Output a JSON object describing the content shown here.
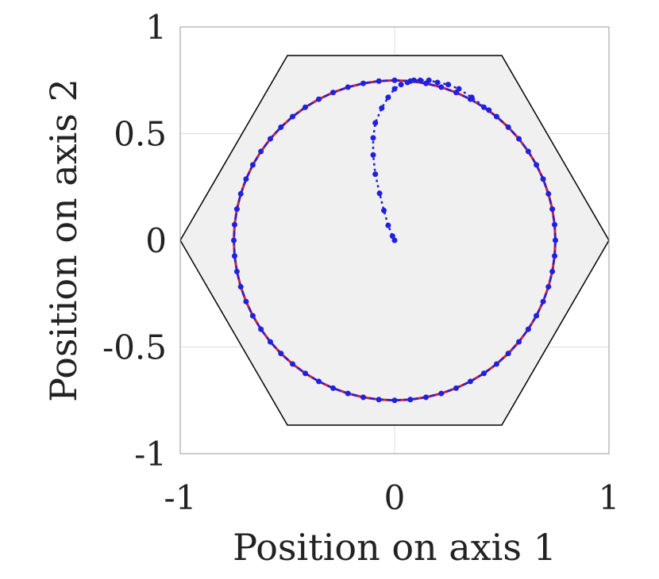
{
  "chart_data": {
    "type": "line",
    "xlabel": "Position on axis 1",
    "ylabel": "Position on axis 2",
    "xlim": [
      -1,
      1
    ],
    "ylim": [
      -1,
      1
    ],
    "xticks": [
      "-1",
      "0",
      "1"
    ],
    "yticks": [
      "1",
      "0.5",
      "0",
      "-0.5",
      "-1"
    ],
    "grid": true,
    "colors": {
      "reference": "#e02020",
      "trajectory": "#2020e0",
      "hexagon_fill": "#f0f0f0",
      "hexagon_edge": "#000000"
    },
    "hexagon": [
      {
        "x": -1.0,
        "y": 0.0
      },
      {
        "x": -0.5,
        "y": 0.866
      },
      {
        "x": 0.5,
        "y": 0.866
      },
      {
        "x": 1.0,
        "y": 0.0
      },
      {
        "x": 0.5,
        "y": -0.866
      },
      {
        "x": -0.5,
        "y": -0.866
      }
    ],
    "circle_radius": 0.75,
    "circle_points": 64,
    "transient_path": [
      {
        "x": 0.0,
        "y": 0.0
      },
      {
        "x": -0.01,
        "y": 0.02
      },
      {
        "x": -0.03,
        "y": 0.07
      },
      {
        "x": -0.05,
        "y": 0.14
      },
      {
        "x": -0.07,
        "y": 0.22
      },
      {
        "x": -0.09,
        "y": 0.31
      },
      {
        "x": -0.1,
        "y": 0.4
      },
      {
        "x": -0.1,
        "y": 0.48
      },
      {
        "x": -0.09,
        "y": 0.55
      },
      {
        "x": -0.06,
        "y": 0.62
      },
      {
        "x": -0.03,
        "y": 0.67
      },
      {
        "x": 0.0,
        "y": 0.71
      },
      {
        "x": 0.03,
        "y": 0.73
      },
      {
        "x": 0.06,
        "y": 0.74
      },
      {
        "x": 0.09,
        "y": 0.75
      },
      {
        "x": 0.12,
        "y": 0.75
      },
      {
        "x": 0.16,
        "y": 0.75
      },
      {
        "x": 0.2,
        "y": 0.74
      },
      {
        "x": 0.25,
        "y": 0.73
      },
      {
        "x": 0.3,
        "y": 0.71
      },
      {
        "x": 0.36,
        "y": 0.67
      },
      {
        "x": 0.44,
        "y": 0.61
      }
    ]
  }
}
